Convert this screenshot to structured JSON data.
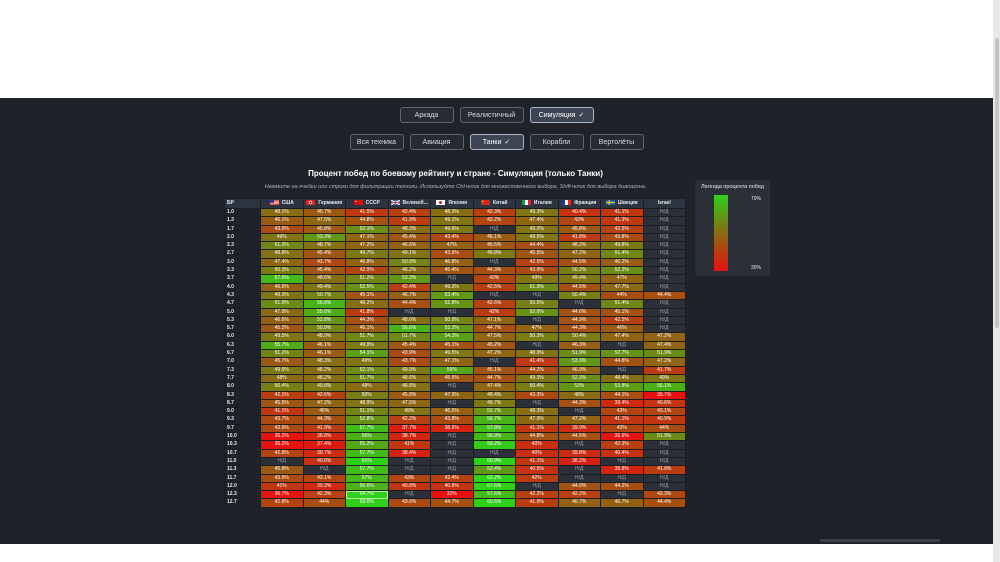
{
  "modes": [
    {
      "label": "Аркада",
      "active": false
    },
    {
      "label": "Реалистичный",
      "active": false
    },
    {
      "label": "Симуляция",
      "active": true,
      "check": "✓"
    }
  ],
  "vehicle_types": [
    {
      "label": "Вся техника",
      "active": false
    },
    {
      "label": "Авиация",
      "active": false
    },
    {
      "label": "Танки",
      "active": true,
      "check": "✓"
    },
    {
      "label": "Корабли",
      "active": false
    },
    {
      "label": "Вертолёты",
      "active": false
    }
  ],
  "title": "Процент побед по боевому рейтингу и стране - Симуляция (только Танки)",
  "subtitle": "Нажмите на ячейки или строки для фильтрации техники. Используйте Ctrl+клик для множественного выбора, Shift+клик для выбора диапазона.",
  "na_label": "Н/Д",
  "br_header": "БР",
  "colors": {
    "high": "#2fd01a",
    "mid": "#8a6a12",
    "low": "#e81010",
    "selected_border": "#aef59a"
  },
  "countries": [
    {
      "name": "США",
      "flag": "us-flag-icon"
    },
    {
      "name": "Германия",
      "flag": "germany-flag-icon"
    },
    {
      "name": "СССР",
      "flag": "ussr-flag-icon"
    },
    {
      "name": "Великоб...",
      "flag": "uk-flag-icon"
    },
    {
      "name": "Япония",
      "flag": "japan-flag-icon"
    },
    {
      "name": "Китай",
      "flag": "china-flag-icon"
    },
    {
      "name": "Италия",
      "flag": "italy-flag-icon"
    },
    {
      "name": "Франция",
      "flag": "france-flag-icon"
    },
    {
      "name": "Швеция",
      "flag": "sweden-flag-icon"
    },
    {
      "name": "Israel",
      "flag": ""
    }
  ],
  "rows": [
    {
      "br": "1.0",
      "values": [
        "48.1%",
        "45.7%",
        "41.5%",
        "42.4%",
        "48.3%",
        "42.3%",
        "49.3%",
        "40.4%",
        "41.1%",
        "Н/Д"
      ]
    },
    {
      "br": "1.3",
      "values": [
        "46.1%",
        "47.5%",
        "44.8%",
        "41.9%",
        "49.1%",
        "43.2%",
        "47.4%",
        "43%",
        "41.3%",
        "Н/Д"
      ]
    },
    {
      "br": "1.7",
      "values": [
        "43.9%",
        "45.8%",
        "52.1%",
        "48.3%",
        "49.6%",
        "Н/Д",
        "49.2%",
        "45.8%",
        "42.5%",
        "Н/Д"
      ]
    },
    {
      "br": "2.0",
      "values": [
        "49%",
        "53.3%",
        "47.1%",
        "45.4%",
        "43.4%",
        "46.1%",
        "49.5%",
        "41.8%",
        "43.8%",
        "Н/Д"
      ]
    },
    {
      "br": "2.3",
      "values": [
        "51.3%",
        "48.7%",
        "47.2%",
        "46.6%",
        "47%",
        "45.5%",
        "44.4%",
        "48.2%",
        "49.8%",
        "Н/Д"
      ]
    },
    {
      "br": "2.7",
      "values": [
        "48.8%",
        "45.4%",
        "49.7%",
        "49.1%",
        "43.9%",
        "49.8%",
        "45.5%",
        "47.2%",
        "51.4%",
        "Н/Д"
      ]
    },
    {
      "br": "3.0",
      "values": [
        "47.4%",
        "43.7%",
        "46.8%",
        "50.9%",
        "46.8%",
        "Н/Д",
        "42.5%",
        "44.5%",
        "46.2%",
        "Н/Д"
      ]
    },
    {
      "br": "3.3",
      "values": [
        "50.3%",
        "45.4%",
        "42.9%",
        "48.2%",
        "45.4%",
        "44.3%",
        "43.9%",
        "50.2%",
        "52.2%",
        "Н/Д"
      ]
    },
    {
      "br": "3.7",
      "values": [
        "57.6%",
        "48.6%",
        "51.2%",
        "53.3%",
        "Н/Д",
        "43%",
        "49%",
        "49.4%",
        "47%",
        "Н/Д"
      ]
    },
    {
      "br": "4.0",
      "values": [
        "46.9%",
        "49.4%",
        "52.5%",
        "42.4%",
        "49.3%",
        "42.5%",
        "51.9%",
        "44.5%",
        "47.7%",
        "Н/Д"
      ]
    },
    {
      "br": "4.3",
      "values": [
        "49.3%",
        "50.7%",
        "45.1%",
        "46.7%",
        "53.4%",
        "Н/Д",
        "Н/Д",
        "50.4%",
        "44%",
        "44.4%"
      ]
    },
    {
      "br": "4.7",
      "values": [
        "51.9%",
        "56.8%",
        "48.2%",
        "44.4%",
        "52.8%",
        "42.6%",
        "50.5%",
        "Н/Д",
        "51.4%",
        "Н/Д"
      ]
    },
    {
      "br": "5.0",
      "values": [
        "47.9%",
        "55.6%",
        "41.8%",
        "Н/Д",
        "Н/Д",
        "42%",
        "52.6%",
        "44.6%",
        "45.1%",
        "Н/Д"
      ]
    },
    {
      "br": "5.3",
      "values": [
        "46.6%",
        "52.8%",
        "44.3%",
        "48.6%",
        "50.9%",
        "47.1%",
        "Н/Д",
        "44.9%",
        "42.5%",
        "Н/Д"
      ]
    },
    {
      "br": "5.7",
      "values": [
        "45.2%",
        "50.9%",
        "46.1%",
        "56.6%",
        "53.2%",
        "44.7%",
        "47%",
        "44.3%",
        "46%",
        "Н/Д"
      ]
    },
    {
      "br": "6.0",
      "values": [
        "49.5%",
        "48.9%",
        "51.7%",
        "51.7%",
        "54.3%",
        "47.5%",
        "50.3%",
        "50.4%",
        "47.4%",
        "47.2%"
      ]
    },
    {
      "br": "6.3",
      "values": [
        "55.7%",
        "46.1%",
        "49.9%",
        "45.4%",
        "45.1%",
        "45.2%",
        "Н/Д",
        "46.3%",
        "Н/Д",
        "47.4%"
      ]
    },
    {
      "br": "6.7",
      "values": [
        "51.2%",
        "46.1%",
        "54.1%",
        "43.9%",
        "49.5%",
        "47.2%",
        "48.9%",
        "51.9%",
        "52.7%",
        "51.9%"
      ]
    },
    {
      "br": "7.0",
      "values": [
        "45.7%",
        "48.3%",
        "49%",
        "43.7%",
        "47.1%",
        "Н/Д",
        "41.4%",
        "53.3%",
        "44.8%",
        "47.2%"
      ]
    },
    {
      "br": "7.3",
      "values": [
        "49.9%",
        "48.2%",
        "52.1%",
        "49.9%",
        "55%",
        "45.1%",
        "44.2%",
        "46.9%",
        "Н/Д",
        "41.7%"
      ]
    },
    {
      "br": "7.7",
      "values": [
        "48%",
        "48.2%",
        "51.7%",
        "48.6%",
        "45.5%",
        "44.7%",
        "49.3%",
        "52.3%",
        "48.4%",
        "49%"
      ]
    },
    {
      "br": "8.0",
      "values": [
        "50.4%",
        "49.8%",
        "48%",
        "48.8%",
        "Н/Д",
        "47.4%",
        "50.4%",
        "53%",
        "53.8%",
        "56.1%"
      ]
    },
    {
      "br": "8.3",
      "values": [
        "42.1%",
        "42.6%",
        "50%",
        "45.8%",
        "47.3%",
        "48.4%",
        "43.3%",
        "48%",
        "44.1%",
        "35.7%"
      ]
    },
    {
      "br": "8.7",
      "values": [
        "45.5%",
        "47.2%",
        "48.9%",
        "47.5%",
        "Н/Д",
        "49.7%",
        "Н/Д",
        "44.3%",
        "39.4%",
        "40.6%"
      ]
    },
    {
      "br": "9.0",
      "values": [
        "41.1%",
        "46%",
        "51.1%",
        "49%",
        "46.5%",
        "52.7%",
        "48.3%",
        "Н/Д",
        "43%",
        "43.1%"
      ]
    },
    {
      "br": "9.3",
      "values": [
        "43.7%",
        "44.3%",
        "52.8%",
        "42.2%",
        "43.8%",
        "56.7%",
        "47.9%",
        "47.2%",
        "41.1%",
        "40.9%"
      ]
    },
    {
      "br": "9.7",
      "values": [
        "43.6%",
        "41.9%",
        "57.7%",
        "37.7%",
        "38.6%",
        "57.8%",
        "41.1%",
        "39.9%",
        "43%",
        "44%"
      ]
    },
    {
      "br": "10.0",
      "values": [
        "36.2%",
        "38.8%",
        "56%",
        "38.7%",
        "Н/Д",
        "56.9%",
        "44.8%",
        "44.5%",
        "36.6%",
        "51.9%"
      ]
    },
    {
      "br": "10.3",
      "values": [
        "36.2%",
        "37.4%",
        "55.2%",
        "41%",
        "Н/Д",
        "59.2%",
        "40%",
        "Н/Д",
        "42.3%",
        "Н/Д"
      ]
    },
    {
      "br": "10.7",
      "values": [
        "42.8%",
        "39.7%",
        "57.7%",
        "38.4%",
        "Н/Д",
        "Н/Д",
        "40%",
        "39.8%",
        "40.4%",
        "Н/Д"
      ]
    },
    {
      "br": "11.0",
      "values": [
        "Н/Д",
        "40.6%",
        "61%",
        "Н/Д",
        "Н/Д",
        "60.9%",
        "41.1%",
        "38.2%",
        "Н/Д",
        "Н/Д"
      ]
    },
    {
      "br": "11.3",
      "values": [
        "45.8%",
        "Н/Д",
        "57.7%",
        "Н/Д",
        "Н/Д",
        "53.4%",
        "40.5%",
        "Н/Д",
        "38.8%",
        "41.8%"
      ]
    },
    {
      "br": "11.7",
      "values": [
        "43.9%",
        "43.1%",
        "57%",
        "43%",
        "42.4%",
        "62.2%",
        "42%",
        "Н/Д",
        "Н/Д",
        "Н/Д"
      ]
    },
    {
      "br": "12.0",
      "values": [
        "41%",
        "39.3%",
        "56.6%",
        "40.8%",
        "40.8%",
        "67.6%",
        "Н/Д",
        "44.8%",
        "44.2%",
        "Н/Д"
      ]
    },
    {
      "br": "12.3",
      "values": [
        "36.7%",
        "42.3%",
        "64.7%",
        "Н/Д",
        "32%",
        "57.6%",
        "42.2%",
        "42.2%",
        "Н/Д",
        "43.3%"
      ]
    },
    {
      "br": "12.7",
      "values": [
        "42.8%",
        "44%",
        "59.6%",
        "43.6%",
        "44.7%",
        "60.5%",
        "41.9%",
        "46.7%",
        "46.7%",
        "44.4%"
      ]
    }
  ],
  "selected_cell": {
    "row": "12.3",
    "country": "СССР"
  },
  "legend": {
    "title": "Легенда процента побед",
    "max_label": "70%",
    "min_label": "30%",
    "max": 70,
    "min": 30
  }
}
